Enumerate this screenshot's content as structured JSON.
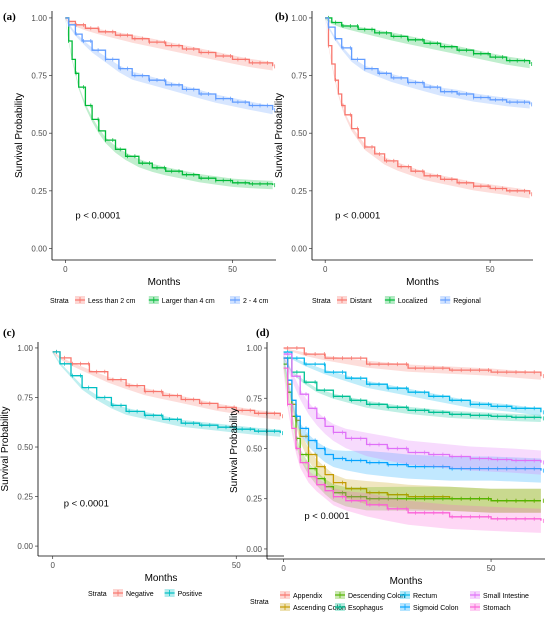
{
  "chart_data": [
    {
      "type": "line",
      "panel_label": "(a)",
      "xlabel": "Months",
      "ylabel": "Survival Probability",
      "xticks": [
        0,
        50
      ],
      "xlim": [
        -4,
        63
      ],
      "yticks": [
        0.0,
        0.25,
        0.5,
        0.75,
        1.0
      ],
      "ytick_labels": [
        "0.00",
        "0.25",
        "0.50",
        "0.75",
        "1.00"
      ],
      "ylim": [
        -0.05,
        1.03
      ],
      "annotation": "p < 0.0001",
      "annotation_pos": [
        3,
        0.13
      ],
      "legend_title": "Strata",
      "legend_placement": "bottom",
      "series": [
        {
          "name": "Less than 2 cm",
          "color": "#F8766D",
          "x": [
            0,
            1,
            3,
            6,
            10,
            15,
            20,
            25,
            30,
            35,
            40,
            45,
            50,
            55,
            62
          ],
          "y": [
            1.0,
            0.985,
            0.97,
            0.955,
            0.94,
            0.925,
            0.91,
            0.895,
            0.88,
            0.865,
            0.85,
            0.835,
            0.82,
            0.805,
            0.79
          ]
        },
        {
          "name": "Larger than 4 cm",
          "color": "#00BA38",
          "x": [
            0,
            1,
            2,
            3,
            4,
            6,
            8,
            10,
            12,
            15,
            18,
            22,
            26,
            30,
            35,
            40,
            45,
            50,
            55,
            62
          ],
          "y": [
            1.0,
            0.9,
            0.82,
            0.76,
            0.7,
            0.62,
            0.56,
            0.51,
            0.47,
            0.43,
            0.4,
            0.37,
            0.35,
            0.335,
            0.32,
            0.305,
            0.295,
            0.285,
            0.28,
            0.275
          ]
        },
        {
          "name": "2 - 4 cm",
          "color": "#619CFF",
          "x": [
            0,
            1,
            3,
            5,
            8,
            12,
            16,
            20,
            25,
            30,
            35,
            40,
            45,
            50,
            55,
            62
          ],
          "y": [
            1.0,
            0.97,
            0.93,
            0.9,
            0.86,
            0.82,
            0.78,
            0.75,
            0.73,
            0.71,
            0.69,
            0.67,
            0.65,
            0.635,
            0.62,
            0.6
          ]
        }
      ]
    },
    {
      "type": "line",
      "panel_label": "(b)",
      "xlabel": "Months",
      "ylabel": "Survival Probability",
      "xticks": [
        0,
        50
      ],
      "xlim": [
        -4,
        63
      ],
      "yticks": [
        0.0,
        0.25,
        0.5,
        0.75,
        1.0
      ],
      "ytick_labels": [
        "0.00",
        "0.25",
        "0.50",
        "0.75",
        "1.00"
      ],
      "ylim": [
        -0.05,
        1.03
      ],
      "annotation": "p < 0.0001",
      "annotation_pos": [
        3,
        0.13
      ],
      "legend_title": "Strata",
      "legend_placement": "bottom",
      "series": [
        {
          "name": "Distant",
          "color": "#F8766D",
          "x": [
            0,
            1,
            2,
            3,
            4,
            5,
            6,
            8,
            10,
            12,
            15,
            18,
            22,
            26,
            30,
            35,
            40,
            45,
            50,
            55,
            62
          ],
          "y": [
            1.0,
            0.88,
            0.8,
            0.73,
            0.67,
            0.62,
            0.58,
            0.52,
            0.48,
            0.44,
            0.41,
            0.38,
            0.355,
            0.335,
            0.315,
            0.3,
            0.285,
            0.27,
            0.26,
            0.25,
            0.235
          ]
        },
        {
          "name": "Localized",
          "color": "#00BA38",
          "x": [
            0,
            2,
            5,
            10,
            15,
            20,
            25,
            30,
            35,
            40,
            45,
            50,
            55,
            62
          ],
          "y": [
            1.0,
            0.98,
            0.965,
            0.95,
            0.935,
            0.92,
            0.905,
            0.89,
            0.875,
            0.86,
            0.845,
            0.83,
            0.815,
            0.8
          ]
        },
        {
          "name": "Regional",
          "color": "#619CFF",
          "x": [
            0,
            1,
            3,
            5,
            8,
            12,
            16,
            20,
            25,
            30,
            35,
            40,
            45,
            50,
            55,
            62
          ],
          "y": [
            1.0,
            0.96,
            0.91,
            0.87,
            0.82,
            0.78,
            0.76,
            0.74,
            0.72,
            0.7,
            0.68,
            0.67,
            0.655,
            0.645,
            0.635,
            0.625
          ]
        }
      ]
    },
    {
      "type": "line",
      "panel_label": "(c)",
      "xlabel": "Months",
      "ylabel": "Survival Probability",
      "xticks": [
        0,
        50
      ],
      "xlim": [
        -4,
        63
      ],
      "yticks": [
        0.0,
        0.25,
        0.5,
        0.75,
        1.0
      ],
      "ytick_labels": [
        "0.00",
        "0.25",
        "0.50",
        "0.75",
        "1.00"
      ],
      "ylim": [
        -0.05,
        1.03
      ],
      "annotation": "p < 0.0001",
      "annotation_pos": [
        3,
        0.2
      ],
      "legend_title": "Strata",
      "legend_placement": "bottom",
      "series": [
        {
          "name": "Negative",
          "color": "#F8766D",
          "x": [
            0,
            2,
            5,
            10,
            15,
            20,
            25,
            30,
            35,
            40,
            45,
            50,
            55,
            62
          ],
          "y": [
            0.98,
            0.95,
            0.92,
            0.88,
            0.84,
            0.81,
            0.78,
            0.76,
            0.74,
            0.72,
            0.7,
            0.685,
            0.67,
            0.655
          ]
        },
        {
          "name": "Positive",
          "color": "#00BFC4",
          "x": [
            0,
            2,
            5,
            8,
            12,
            16,
            20,
            25,
            30,
            35,
            40,
            45,
            50,
            55,
            62
          ],
          "y": [
            0.98,
            0.92,
            0.86,
            0.8,
            0.75,
            0.71,
            0.68,
            0.66,
            0.64,
            0.62,
            0.61,
            0.6,
            0.59,
            0.58,
            0.57
          ]
        }
      ]
    },
    {
      "type": "line",
      "panel_label": "(d)",
      "xlabel": "Months",
      "ylabel": "Survival Probability",
      "xticks": [
        0,
        50
      ],
      "xlim": [
        -4,
        63
      ],
      "yticks": [
        0.0,
        0.25,
        0.5,
        0.75,
        1.0
      ],
      "ytick_labels": [
        "0.00",
        "0.25",
        "0.50",
        "0.75",
        "1.00"
      ],
      "ylim": [
        -0.05,
        1.03
      ],
      "annotation": "p < 0.0001",
      "annotation_pos": [
        5,
        0.15
      ],
      "legend_title": "Strata",
      "legend_placement": "bottom",
      "series": [
        {
          "name": "Appendix",
          "color": "#F8766D",
          "x": [
            0,
            5,
            10,
            20,
            30,
            40,
            50,
            62
          ],
          "y": [
            1.0,
            0.97,
            0.95,
            0.92,
            0.9,
            0.89,
            0.88,
            0.86
          ]
        },
        {
          "name": "Ascending Colon",
          "color": "#C49A00",
          "x": [
            0,
            1,
            2,
            3,
            4,
            6,
            8,
            10,
            12,
            15,
            20,
            25,
            30,
            40,
            50,
            62
          ],
          "y": [
            0.95,
            0.82,
            0.72,
            0.64,
            0.56,
            0.47,
            0.41,
            0.37,
            0.33,
            0.3,
            0.28,
            0.27,
            0.26,
            0.25,
            0.24,
            0.24
          ]
        },
        {
          "name": "Descending Colon",
          "color": "#53B400",
          "x": [
            0,
            1,
            2,
            3,
            4,
            6,
            8,
            10,
            12,
            15,
            20,
            30,
            40,
            50,
            62
          ],
          "y": [
            0.92,
            0.78,
            0.66,
            0.55,
            0.47,
            0.4,
            0.35,
            0.31,
            0.28,
            0.26,
            0.25,
            0.25,
            0.25,
            0.24,
            0.24
          ]
        },
        {
          "name": "Esophagus",
          "color": "#00C094",
          "x": [
            0,
            2,
            5,
            8,
            12,
            16,
            20,
            25,
            30,
            35,
            40,
            45,
            50,
            55,
            62
          ],
          "y": [
            0.95,
            0.88,
            0.83,
            0.79,
            0.76,
            0.74,
            0.72,
            0.705,
            0.69,
            0.68,
            0.67,
            0.665,
            0.66,
            0.655,
            0.65
          ]
        },
        {
          "name": "Rectum",
          "color": "#00B6EB",
          "x": [
            0,
            2,
            5,
            10,
            15,
            20,
            25,
            30,
            35,
            40,
            45,
            50,
            55,
            62
          ],
          "y": [
            0.98,
            0.95,
            0.92,
            0.88,
            0.85,
            0.82,
            0.8,
            0.78,
            0.76,
            0.74,
            0.72,
            0.71,
            0.7,
            0.68
          ]
        },
        {
          "name": "Sigmoid Colon",
          "color": "#06A4FF",
          "x": [
            0,
            1,
            2,
            3,
            4,
            6,
            8,
            10,
            12,
            15,
            20,
            25,
            30,
            40,
            50,
            62
          ],
          "y": [
            0.95,
            0.84,
            0.74,
            0.66,
            0.6,
            0.54,
            0.5,
            0.47,
            0.45,
            0.44,
            0.43,
            0.42,
            0.41,
            0.4,
            0.4,
            0.39
          ]
        },
        {
          "name": "Small Intestine",
          "color": "#DF70F8",
          "x": [
            0,
            2,
            4,
            6,
            8,
            10,
            12,
            15,
            20,
            25,
            30,
            35,
            40,
            45,
            50,
            55,
            62
          ],
          "y": [
            0.97,
            0.86,
            0.77,
            0.7,
            0.65,
            0.61,
            0.58,
            0.55,
            0.52,
            0.5,
            0.48,
            0.47,
            0.46,
            0.45,
            0.445,
            0.44,
            0.43
          ]
        },
        {
          "name": "Stomach",
          "color": "#FB61D7",
          "x": [
            0,
            1,
            2,
            3,
            4,
            6,
            8,
            10,
            12,
            15,
            20,
            25,
            30,
            40,
            50,
            62
          ],
          "y": [
            0.9,
            0.72,
            0.6,
            0.5,
            0.43,
            0.36,
            0.32,
            0.29,
            0.26,
            0.24,
            0.22,
            0.2,
            0.18,
            0.16,
            0.15,
            0.14
          ]
        }
      ]
    }
  ]
}
